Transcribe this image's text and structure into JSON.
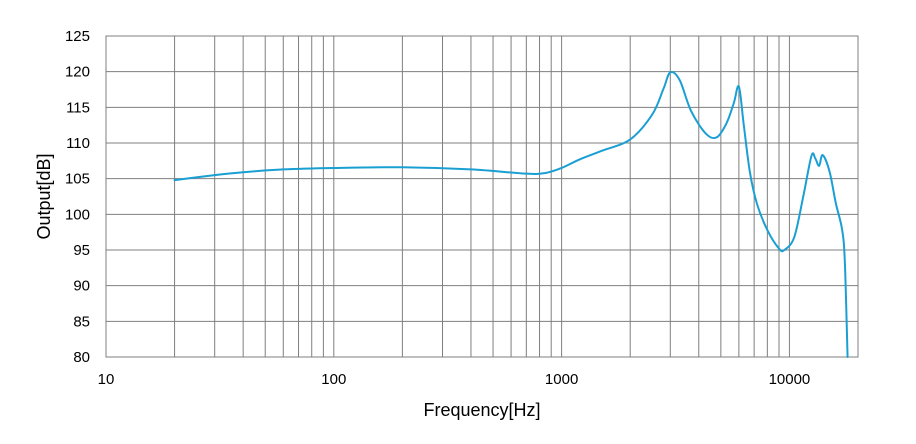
{
  "chart_data": {
    "type": "line",
    "xlabel": "Frequency[Hz]",
    "ylabel": "Output[dB]",
    "x_scale": "log",
    "xlim": [
      10,
      20000
    ],
    "ylim": [
      80,
      125
    ],
    "x_ticks": [
      10,
      100,
      1000,
      10000
    ],
    "x_tick_labels": [
      "10",
      "100",
      "1000",
      "10000"
    ],
    "y_ticks": [
      80,
      85,
      90,
      95,
      100,
      105,
      110,
      115,
      120,
      125
    ],
    "y_tick_labels": [
      "80",
      "85",
      "90",
      "95",
      "100",
      "105",
      "110",
      "115",
      "120",
      "125"
    ],
    "grid": true,
    "line_color": "#1a9fd3",
    "series": [
      {
        "x": [
          20,
          30,
          40,
          60,
          100,
          200,
          400,
          700,
          850,
          1000,
          1200,
          1500,
          2000,
          2500,
          2800,
          3000,
          3300,
          3700,
          4300,
          4800,
          5300,
          5700,
          6000,
          6300,
          6700,
          7200,
          8000,
          9000,
          9500,
          10500,
          11500,
          12500,
          13000,
          13500,
          14000,
          15000,
          16000,
          17000,
          17500,
          18000
        ],
        "y": [
          104.8,
          105.5,
          105.9,
          106.3,
          106.5,
          106.6,
          106.3,
          105.7,
          105.8,
          106.5,
          107.7,
          108.9,
          110.5,
          114.0,
          117.6,
          119.9,
          118.8,
          114.5,
          111.3,
          110.8,
          112.8,
          115.6,
          117.9,
          112.6,
          106.0,
          101.5,
          97.8,
          95.2,
          95.0,
          96.8,
          102.5,
          108.2,
          107.8,
          106.8,
          108.3,
          106.0,
          101.5,
          98.0,
          93.5,
          80.0
        ]
      }
    ]
  }
}
